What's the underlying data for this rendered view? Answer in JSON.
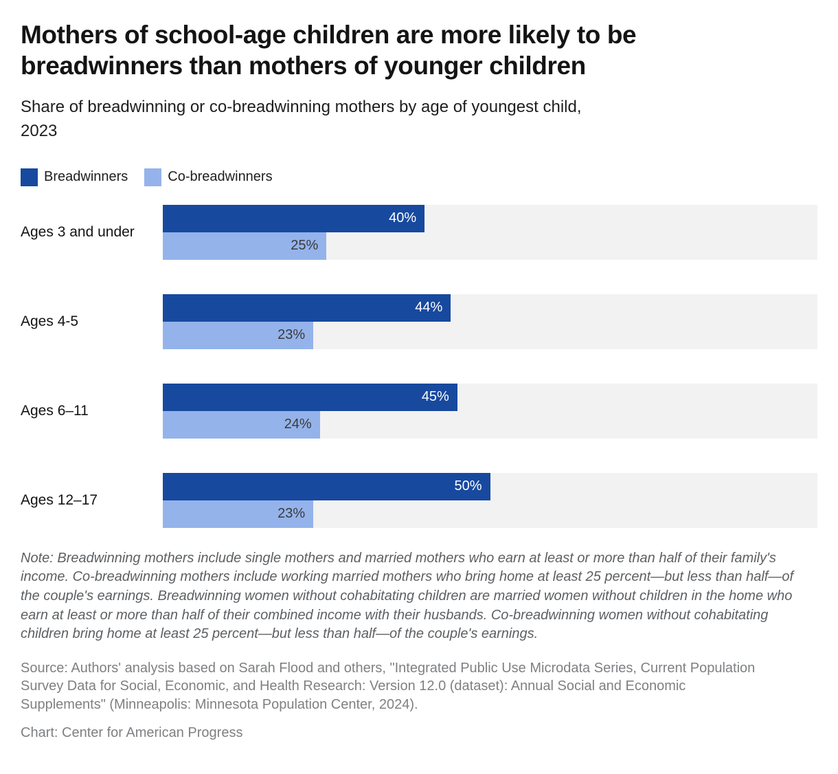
{
  "header": {
    "title": "Mothers of school-age children are more likely to be breadwinners than mothers of younger children",
    "subtitle": "Share of breadwinning or co-breadwinning mothers by age of youngest child, 2023"
  },
  "colors": {
    "breadwinners": "#17499F",
    "co_breadwinners": "#94B3EB",
    "track": "#F2F2F2",
    "dark_value_text": "#FFFFFF",
    "light_value_text": "#3A3A3A"
  },
  "legend": {
    "items": [
      {
        "label": "Breadwinners",
        "color": "#17499F"
      },
      {
        "label": "Co-breadwinners",
        "color": "#94B3EB"
      }
    ]
  },
  "chart_data": {
    "type": "bar",
    "orientation": "horizontal",
    "title": "Mothers of school-age children are more likely to be breadwinners than mothers of younger children",
    "subtitle": "Share of breadwinning or co-breadwinning mothers by age of youngest child, 2023",
    "categories": [
      "Ages 3 and under",
      "Ages 4-5",
      "Ages 6–11",
      "Ages 12–17"
    ],
    "series": [
      {
        "name": "Breadwinners",
        "color": "#17499F",
        "values": [
          40,
          44,
          45,
          50
        ]
      },
      {
        "name": "Co-breadwinners",
        "color": "#94B3EB",
        "values": [
          25,
          23,
          24,
          23
        ]
      }
    ],
    "value_labels": {
      "breadwinners": [
        "40%",
        "44%",
        "45%",
        "50%"
      ],
      "co_breadwinners": [
        "25%",
        "23%",
        "24%",
        "23%"
      ]
    },
    "xlim": [
      0,
      100
    ],
    "value_suffix": "%",
    "grid": false,
    "legend_position": "top",
    "track_background": "#F2F2F2"
  },
  "footer": {
    "note": "Note: Breadwinning mothers include single mothers and married mothers who earn at least or more than half of their family's income. Co-breadwinning mothers include working married mothers who bring home at least 25 percent—but less than half—of the couple's earnings. Breadwinning women without cohabitating children are married women without children in the home who earn at least or more than half of their combined income with their husbands. Co-breadwinning women without cohabitating children bring home at least 25 percent—but less than half—of the couple's earnings.",
    "source": "Source: Authors' analysis based on Sarah Flood and others, \"Integrated Public Use Microdata Series, Current Population Survey Data for Social, Economic, and Health Research: Version 12.0 (dataset): Annual Social and Economic Supplements\" (Minneapolis: Minnesota Population Center, 2024).",
    "credit": "Chart: Center for American Progress"
  }
}
